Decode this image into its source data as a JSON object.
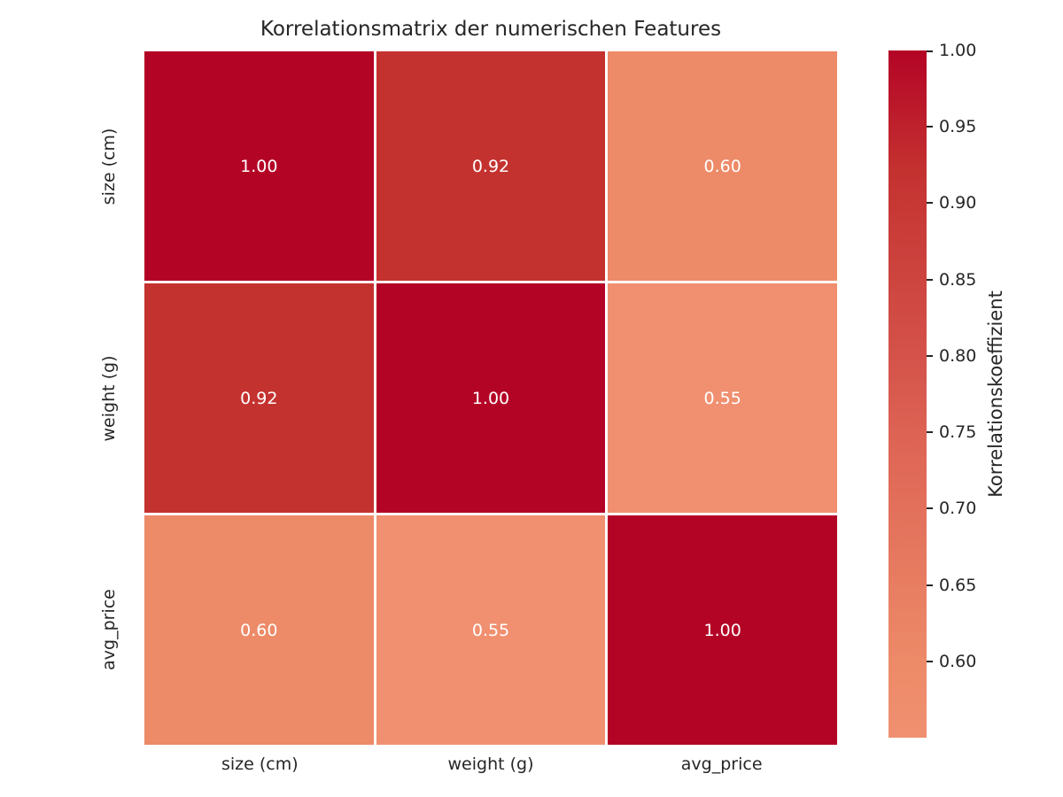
{
  "title": "Korrelationsmatrix der numerischen Features",
  "chart_data": {
    "type": "heatmap",
    "title": "Korrelationsmatrix der numerischen Features",
    "categories": [
      "size (cm)",
      "weight (g)",
      "avg_price"
    ],
    "x_tick_labels": [
      "size (cm)",
      "weight (g)",
      "avg_price"
    ],
    "y_tick_labels": [
      "size (cm)",
      "weight (g)",
      "avg_price"
    ],
    "matrix": [
      [
        1.0,
        0.92,
        0.6
      ],
      [
        0.92,
        1.0,
        0.55
      ],
      [
        0.6,
        0.55,
        1.0
      ]
    ],
    "annotation_decimals": 2,
    "grid": false,
    "colorbar": {
      "label": "Korrelationskoeffizient",
      "vmin": 0.55,
      "vmax": 1.0,
      "ticks": [
        1.0,
        0.95,
        0.9,
        0.85,
        0.8,
        0.75,
        0.7,
        0.65,
        0.6
      ],
      "position": "right"
    },
    "colorscale": [
      {
        "v": 1.0,
        "c": "#b40426"
      },
      {
        "v": 0.92,
        "c": "#c43230"
      },
      {
        "v": 0.8,
        "c": "#d4524a"
      },
      {
        "v": 0.75,
        "c": "#dd6354"
      },
      {
        "v": 0.6,
        "c": "#ed8a68"
      },
      {
        "v": 0.55,
        "c": "#f09070"
      }
    ],
    "cell_text_color": "#ffffff",
    "axis_text_color": "#262626",
    "grid_color": "#ffffff",
    "background_color": "#ffffff"
  }
}
